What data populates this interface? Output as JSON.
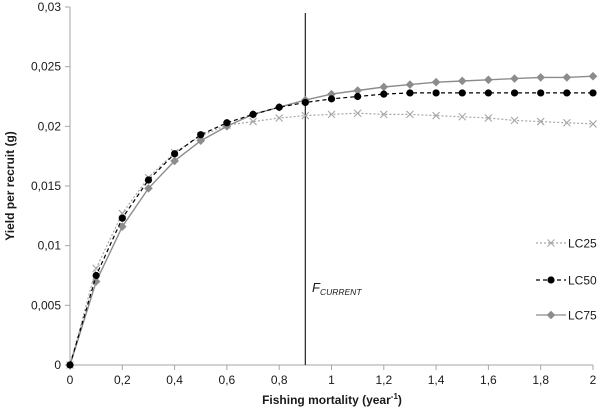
{
  "chart_data": {
    "type": "line",
    "title": "",
    "xlabel": "Fishing mortality (year⁻¹)",
    "xlabel_main": "Fishing mortality (year",
    "xlabel_sup": "-1",
    "xlabel_close": ")",
    "ylabel": "Yield per recruit (g)",
    "xlim": [
      0,
      2
    ],
    "ylim": [
      0,
      0.03
    ],
    "grid": false,
    "legend_position": "right-middle",
    "x": [
      0,
      0.1,
      0.2,
      0.3,
      0.4,
      0.5,
      0.6,
      0.7,
      0.8,
      0.9,
      1.0,
      1.1,
      1.2,
      1.3,
      1.4,
      1.5,
      1.6,
      1.7,
      1.8,
      1.9,
      2.0
    ],
    "x_ticks": [
      0,
      0.2,
      0.4,
      0.6,
      0.8,
      1,
      1.2,
      1.4,
      1.6,
      1.8,
      2
    ],
    "x_tick_labels": [
      "0",
      "0,2",
      "0,4",
      "0,6",
      "0,8",
      "1",
      "1,2",
      "1,4",
      "1,6",
      "1,8",
      "2"
    ],
    "y_ticks": [
      0,
      0.005,
      0.01,
      0.015,
      0.02,
      0.025,
      0.03
    ],
    "y_tick_labels": [
      "0",
      "0,005",
      "0,01",
      "0,015",
      "0,02",
      "0,025",
      "0,03"
    ],
    "series": [
      {
        "name": "LC25",
        "style": "dotted",
        "marker": "x",
        "color": "#a6a6a6",
        "values": [
          0,
          0.0081,
          0.0127,
          0.0157,
          0.0178,
          0.0192,
          0.0201,
          0.0204,
          0.0207,
          0.0209,
          0.021,
          0.0211,
          0.021,
          0.021,
          0.0209,
          0.0208,
          0.0207,
          0.0205,
          0.0204,
          0.0203,
          0.0202
        ]
      },
      {
        "name": "LC50",
        "style": "dashed",
        "marker": "circle",
        "color": "#000000",
        "values": [
          0,
          0.0075,
          0.0123,
          0.0155,
          0.0177,
          0.0193,
          0.0203,
          0.021,
          0.0216,
          0.022,
          0.0223,
          0.0225,
          0.0227,
          0.0228,
          0.0228,
          0.0228,
          0.0228,
          0.0228,
          0.0228,
          0.0228,
          0.0228
        ]
      },
      {
        "name": "LC75",
        "style": "solid",
        "marker": "diamond",
        "color": "#8c8c8c",
        "values": [
          0,
          0.007,
          0.0116,
          0.0148,
          0.0171,
          0.0188,
          0.02,
          0.021,
          0.0216,
          0.0222,
          0.0227,
          0.023,
          0.0233,
          0.0235,
          0.0237,
          0.0238,
          0.0239,
          0.024,
          0.0241,
          0.0241,
          0.0242
        ]
      }
    ],
    "annotations": [
      {
        "type": "vline",
        "x": 0.9,
        "label_main": "F",
        "label_sub": "CURRENT",
        "color": "#333333"
      }
    ]
  }
}
